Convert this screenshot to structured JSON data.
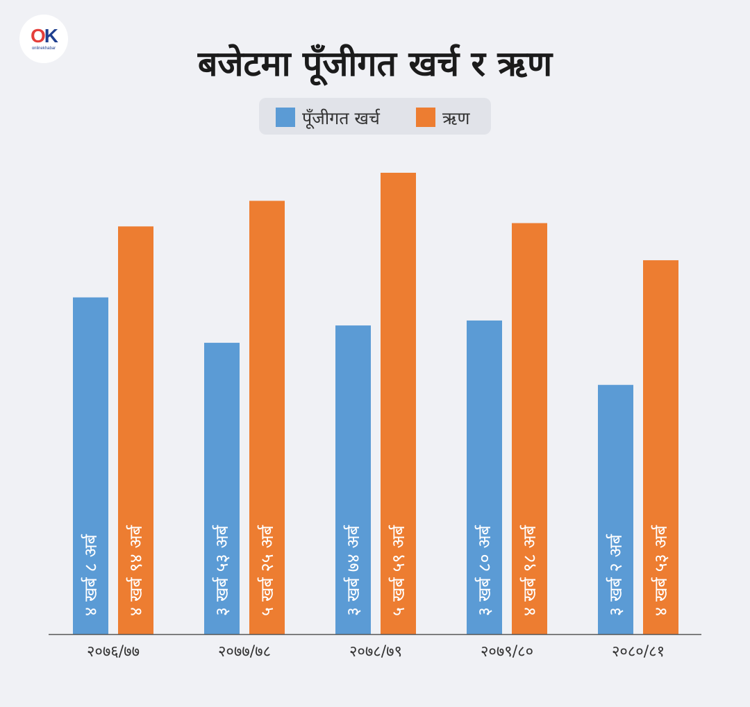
{
  "logo": {
    "mark_o": "O",
    "mark_k": "K",
    "brand_text": "onlinekhabar"
  },
  "title": "बजेटमा पूँजीगत खर्च र ऋण",
  "legend": [
    {
      "label": "पूँजीगत खर्च",
      "color": "#5b9bd5"
    },
    {
      "label": "ऋण",
      "color": "#ed7d31"
    }
  ],
  "chart_data": {
    "type": "bar",
    "title": "बजेटमा पूँजीगत खर्च र ऋण",
    "categories": [
      "२०७६/७७",
      "२०७७/७८",
      "२०७८/७९",
      "२०७९/८०",
      "२०८०/८१"
    ],
    "series": [
      {
        "name": "पूँजीगत खर्च",
        "color": "#5b9bd5",
        "values": [
          408,
          353,
          374,
          380,
          302
        ],
        "labels": [
          "४ खर्ब ८ अर्ब",
          "३ खर्ब ५३ अर्ब",
          "३ खर्ब ७४ अर्ब",
          "३ खर्ब ८० अर्ब",
          "३ खर्ब २ अर्ब"
        ]
      },
      {
        "name": "ऋण",
        "color": "#ed7d31",
        "values": [
          494,
          525,
          559,
          498,
          453
        ],
        "labels": [
          "४ खर्ब ९४ अर्ब",
          "५ खर्ब २५ अर्ब",
          "५ खर्ब ५९ अर्ब",
          "४ खर्ब ९८ अर्ब",
          "४ खर्ब ५३ अर्ब"
        ]
      }
    ],
    "ylim": [
      0,
      559
    ],
    "grid": false,
    "legend_position": "top-center"
  }
}
